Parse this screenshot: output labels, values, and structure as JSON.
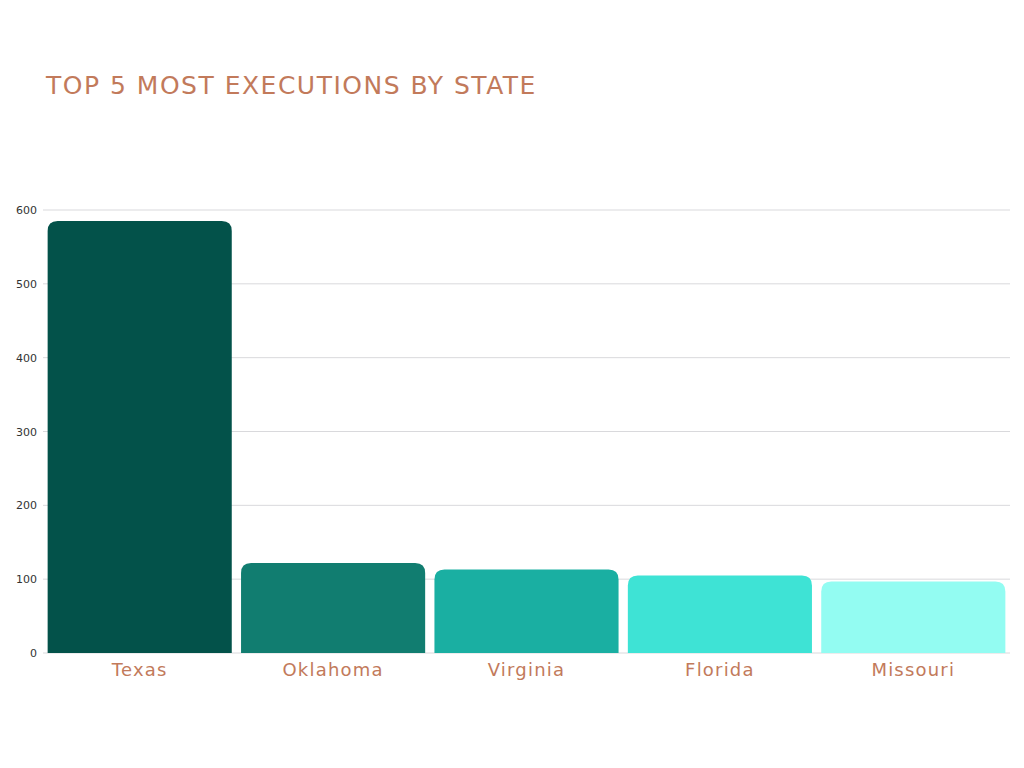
{
  "chart_data": {
    "type": "bar",
    "title": "TOP 5 MOST EXECUTIONS BY STATE",
    "categories": [
      "Texas",
      "Oklahoma",
      "Virginia",
      "Florida",
      "Missouri"
    ],
    "values": [
      585,
      122,
      113,
      105,
      97
    ],
    "colors": [
      "#03524a",
      "#117d70",
      "#1aafa2",
      "#3ee3d5",
      "#93fcf2"
    ],
    "ylim": [
      0,
      600
    ],
    "yticks": [
      0,
      100,
      200,
      300,
      400,
      500,
      600
    ],
    "grid": true
  }
}
